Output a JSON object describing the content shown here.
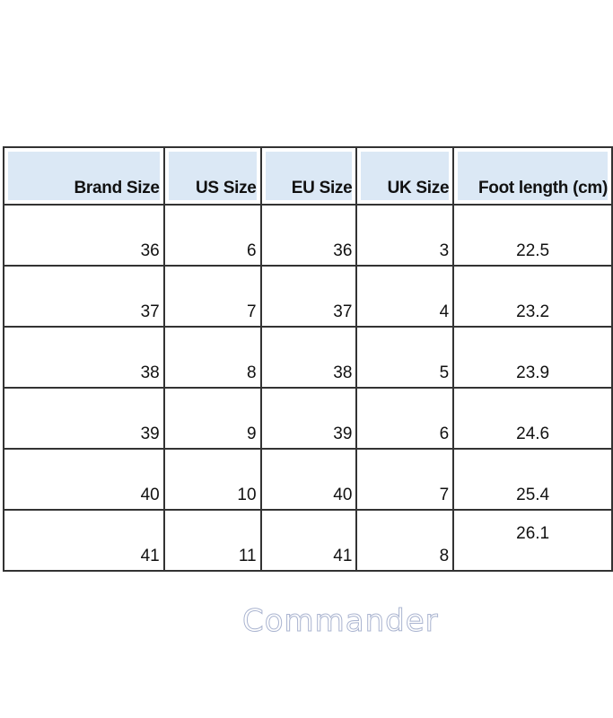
{
  "table": {
    "headers": [
      "Brand Size",
      "US Size",
      "EU Size",
      "UK Size",
      "Foot length (cm)"
    ],
    "rows": [
      [
        "36",
        "6",
        "36",
        "3",
        "22.5"
      ],
      [
        "37",
        "7",
        "37",
        "4",
        "23.2"
      ],
      [
        "38",
        "8",
        "38",
        "5",
        "23.9"
      ],
      [
        "39",
        "9",
        "39",
        "6",
        "24.6"
      ],
      [
        "40",
        "10",
        "40",
        "7",
        "25.4"
      ],
      [
        "41",
        "11",
        "41",
        "8",
        "26.1"
      ]
    ],
    "header_color": "#dbe8f5"
  },
  "watermark": "Commander"
}
